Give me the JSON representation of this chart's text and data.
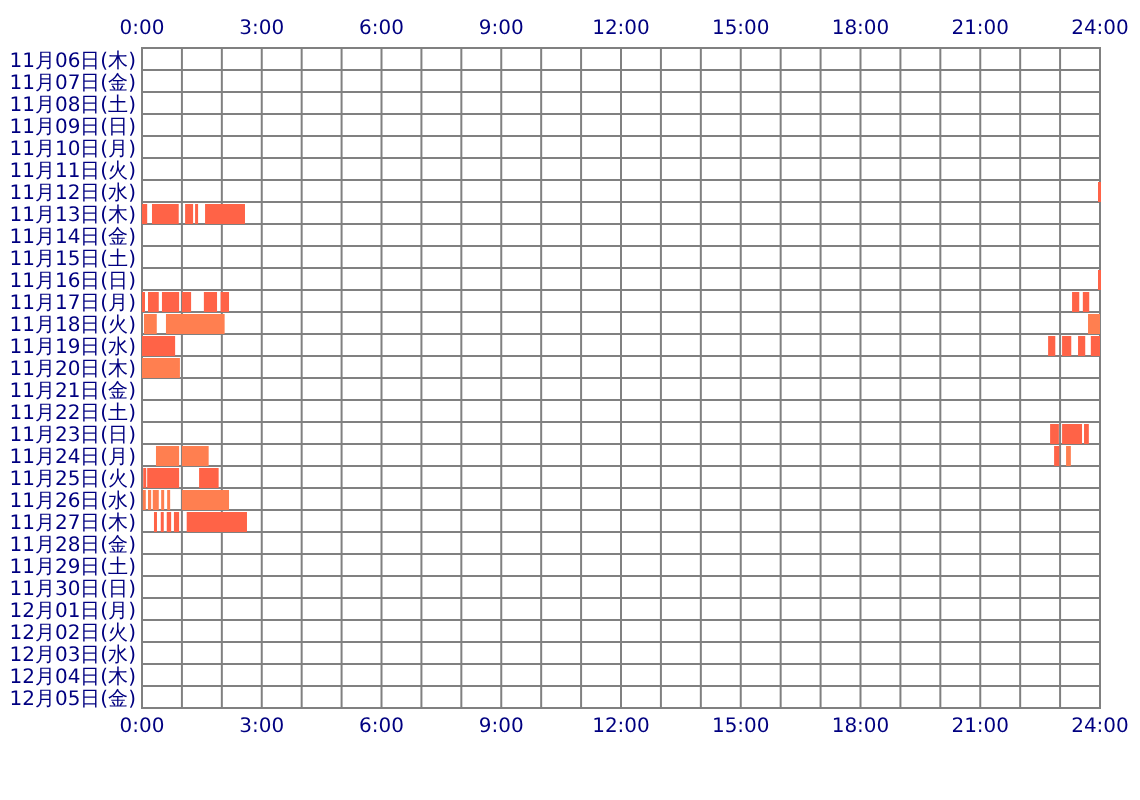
{
  "chart_data": {
    "type": "bar",
    "orientation": "horizontal",
    "grid": true,
    "categories": [
      "11月06日(木)",
      "11月07日(金)",
      "11月08日(土)",
      "11月09日(日)",
      "11月10日(月)",
      "11月11日(火)",
      "11月12日(水)",
      "11月13日(木)",
      "11月14日(金)",
      "11月15日(土)",
      "11月16日(日)",
      "11月17日(月)",
      "11月18日(火)",
      "11月19日(水)",
      "11月20日(木)",
      "11月21日(金)",
      "11月22日(土)",
      "11月23日(日)",
      "11月24日(月)",
      "11月25日(火)",
      "11月26日(水)",
      "11月27日(木)",
      "11月28日(金)",
      "11月29日(土)",
      "11月30日(日)",
      "12月01日(月)",
      "12月02日(火)",
      "12月03日(水)",
      "12月04日(木)",
      "12月05日(金)"
    ],
    "xlim": [
      0,
      24
    ],
    "xticks": [
      {
        "value": 0,
        "label": "0:00"
      },
      {
        "value": 1,
        "label": null
      },
      {
        "value": 2,
        "label": null
      },
      {
        "value": 3,
        "label": "3:00"
      },
      {
        "value": 4,
        "label": null
      },
      {
        "value": 5,
        "label": null
      },
      {
        "value": 6,
        "label": "6:00"
      },
      {
        "value": 7,
        "label": null
      },
      {
        "value": 8,
        "label": null
      },
      {
        "value": 9,
        "label": "9:00"
      },
      {
        "value": 10,
        "label": null
      },
      {
        "value": 11,
        "label": null
      },
      {
        "value": 12,
        "label": "12:00"
      },
      {
        "value": 13,
        "label": null
      },
      {
        "value": 14,
        "label": null
      },
      {
        "value": 15,
        "label": "15:00"
      },
      {
        "value": 16,
        "label": null
      },
      {
        "value": 17,
        "label": null
      },
      {
        "value": 18,
        "label": "18:00"
      },
      {
        "value": 19,
        "label": null
      },
      {
        "value": 20,
        "label": null
      },
      {
        "value": 21,
        "label": "21:00"
      },
      {
        "value": 22,
        "label": null
      },
      {
        "value": 23,
        "label": null
      },
      {
        "value": 24,
        "label": "24:00"
      }
    ],
    "x2lim": [
      0,
      24
    ],
    "x2ticks": [
      {
        "value": 0,
        "label": "0:00"
      },
      {
        "value": 3,
        "label": "3:00"
      },
      {
        "value": 6,
        "label": "6:00"
      },
      {
        "value": 9,
        "label": "9:00"
      },
      {
        "value": 12,
        "label": "12:00"
      },
      {
        "value": 15,
        "label": "15:00"
      },
      {
        "value": 18,
        "label": "18:00"
      },
      {
        "value": 21,
        "label": "21:00"
      },
      {
        "value": 24,
        "label": "24:00"
      }
    ],
    "series": [
      {
        "values": [
          null,
          null,
          null,
          null,
          null,
          null,
          0.05,
          0.13,
          null,
          null,
          0.05,
          0.07,
          0.32,
          0.83,
          0.95,
          null,
          null,
          0.22,
          0.58,
          0.05,
          0.06,
          0.07,
          null,
          null,
          null,
          null,
          null,
          null,
          null,
          null
        ],
        "base": [
          null,
          null,
          null,
          null,
          null,
          null,
          23.95,
          0,
          null,
          null,
          23.95,
          0,
          0.05,
          0,
          0,
          null,
          null,
          22.75,
          0.35,
          0.03,
          0.02,
          0.3,
          null,
          null,
          null,
          null,
          null,
          null,
          null,
          null
        ],
        "colors": [
          null,
          null,
          null,
          null,
          null,
          null,
          "#ff6347",
          "#ff6347",
          null,
          null,
          "#ff6347",
          "#ff6347",
          "#ff7f50",
          "#ff6347",
          "#ff7f50",
          null,
          null,
          "#ff6347",
          "#ff7f50",
          "#ff6347",
          "#ff7f50",
          "#ff6347",
          null,
          null,
          null,
          null,
          null,
          null,
          null,
          null
        ]
      },
      {
        "values": [
          null,
          null,
          null,
          null,
          null,
          null,
          null,
          0.67,
          null,
          null,
          null,
          0.27,
          1.47,
          0.18,
          null,
          null,
          null,
          0.5,
          0.67,
          0.05,
          0.08,
          0.06,
          null,
          null,
          null,
          null,
          null,
          null,
          null,
          null
        ],
        "base": [
          null,
          null,
          null,
          null,
          null,
          null,
          null,
          0.25,
          null,
          null,
          null,
          0.15,
          0.6,
          22.7,
          null,
          null,
          null,
          23.05,
          1.0,
          0.13,
          0.15,
          0.47,
          null,
          null,
          null,
          null,
          null,
          null,
          null,
          null
        ],
        "colors": [
          null,
          null,
          null,
          null,
          null,
          null,
          null,
          "#ff6347",
          null,
          null,
          null,
          "#ff6347",
          "#ff7f50",
          "#ff6347",
          null,
          null,
          null,
          "#ff6347",
          "#ff7f50",
          "#ff6347",
          "#ff7f50",
          "#ff6347",
          null,
          null,
          null,
          null,
          null,
          null,
          null,
          null
        ]
      },
      {
        "values": [
          null,
          null,
          null,
          null,
          null,
          null,
          null,
          0.2,
          null,
          null,
          null,
          0.43,
          0.3,
          0.23,
          null,
          null,
          null,
          0.12,
          0.13,
          0.73,
          0.15,
          0.11,
          null,
          null,
          null,
          null,
          null,
          null,
          null,
          null
        ],
        "base": [
          null,
          null,
          null,
          null,
          null,
          null,
          null,
          1.08,
          null,
          null,
          null,
          0.5,
          23.7,
          23.05,
          null,
          null,
          null,
          23.6,
          22.85,
          0.2,
          0.27,
          0.62,
          null,
          null,
          null,
          null,
          null,
          null,
          null,
          null
        ],
        "colors": [
          null,
          null,
          null,
          null,
          null,
          null,
          null,
          "#ff6347",
          null,
          null,
          null,
          "#ff6347",
          "#ff7f50",
          "#ff6347",
          null,
          null,
          null,
          "#ff6347",
          "#ff6347",
          "#ff6347",
          "#ff7f50",
          "#ff6347",
          null,
          null,
          null,
          null,
          null,
          null,
          null,
          null
        ]
      },
      {
        "values": [
          null,
          null,
          null,
          null,
          null,
          null,
          null,
          0.07,
          null,
          null,
          null,
          0.23,
          null,
          0.18,
          null,
          null,
          null,
          null,
          0.12,
          0.49,
          0.07,
          0.13,
          null,
          null,
          null,
          null,
          null,
          null,
          null,
          null
        ],
        "base": [
          null,
          null,
          null,
          null,
          null,
          null,
          null,
          1.33,
          null,
          null,
          null,
          1.0,
          null,
          23.45,
          null,
          null,
          null,
          null,
          23.15,
          1.43,
          0.48,
          0.8,
          null,
          null,
          null,
          null,
          null,
          null,
          null,
          null
        ],
        "colors": [
          null,
          null,
          null,
          null,
          null,
          null,
          null,
          "#ff6347",
          null,
          null,
          null,
          "#ff6347",
          null,
          "#ff6347",
          null,
          null,
          null,
          null,
          "#ff7f50",
          "#ff6347",
          "#ff7f50",
          "#ff6347",
          null,
          null,
          null,
          null,
          null,
          null,
          null,
          null
        ]
      },
      {
        "values": [
          null,
          null,
          null,
          null,
          null,
          null,
          null,
          1.0,
          null,
          null,
          null,
          0.33,
          null,
          0.23,
          null,
          null,
          null,
          null,
          null,
          null,
          0.05,
          1.51,
          null,
          null,
          null,
          null,
          null,
          null,
          null,
          null
        ],
        "base": [
          null,
          null,
          null,
          null,
          null,
          null,
          null,
          1.58,
          null,
          null,
          null,
          1.55,
          null,
          23.77,
          null,
          null,
          null,
          null,
          null,
          null,
          0.63,
          1.12,
          null,
          null,
          null,
          null,
          null,
          null,
          null,
          null
        ],
        "colors": [
          null,
          null,
          null,
          null,
          null,
          null,
          null,
          "#ff6347",
          null,
          null,
          null,
          "#ff6347",
          null,
          "#ff6347",
          null,
          null,
          null,
          null,
          null,
          null,
          "#ff7f50",
          "#ff6347",
          null,
          null,
          null,
          null,
          null,
          null,
          null,
          null
        ]
      },
      {
        "values": [
          null,
          null,
          null,
          null,
          null,
          null,
          null,
          null,
          null,
          null,
          null,
          0.21,
          null,
          null,
          null,
          null,
          null,
          null,
          null,
          null,
          1.18,
          null,
          null,
          null,
          null,
          null,
          null,
          null,
          null,
          null
        ],
        "base": [
          null,
          null,
          null,
          null,
          null,
          null,
          null,
          null,
          null,
          null,
          null,
          1.97,
          null,
          null,
          null,
          null,
          null,
          null,
          null,
          null,
          1.0,
          null,
          null,
          null,
          null,
          null,
          null,
          null,
          null,
          null
        ],
        "colors": [
          null,
          null,
          null,
          null,
          null,
          null,
          null,
          null,
          null,
          null,
          null,
          "#ff6347",
          null,
          null,
          null,
          null,
          null,
          null,
          null,
          null,
          "#ff7f50",
          null,
          null,
          null,
          null,
          null,
          null,
          null,
          null,
          null
        ]
      },
      {
        "values": [
          null,
          null,
          null,
          null,
          null,
          null,
          null,
          null,
          null,
          null,
          null,
          0.18,
          null,
          null,
          null,
          null,
          null,
          null,
          null,
          null,
          null,
          null,
          null,
          null,
          null,
          null,
          null,
          null,
          null,
          null
        ],
        "base": [
          null,
          null,
          null,
          null,
          null,
          null,
          null,
          null,
          null,
          null,
          null,
          23.3,
          null,
          null,
          null,
          null,
          null,
          null,
          null,
          null,
          null,
          null,
          null,
          null,
          null,
          null,
          null,
          null,
          null,
          null
        ],
        "colors": [
          null,
          null,
          null,
          null,
          null,
          null,
          null,
          null,
          null,
          null,
          null,
          "#ff6347",
          null,
          null,
          null,
          null,
          null,
          null,
          null,
          null,
          null,
          null,
          null,
          null,
          null,
          null,
          null,
          null,
          null,
          null
        ]
      },
      {
        "values": [
          null,
          null,
          null,
          null,
          null,
          null,
          null,
          null,
          null,
          null,
          null,
          0.16,
          null,
          null,
          null,
          null,
          null,
          null,
          null,
          null,
          null,
          null,
          null,
          null,
          null,
          null,
          null,
          null,
          null,
          null
        ],
        "base": [
          null,
          null,
          null,
          null,
          null,
          null,
          null,
          null,
          null,
          null,
          null,
          23.57,
          null,
          null,
          null,
          null,
          null,
          null,
          null,
          null,
          null,
          null,
          null,
          null,
          null,
          null,
          null,
          null,
          null,
          null
        ],
        "colors": [
          null,
          null,
          null,
          null,
          null,
          null,
          null,
          null,
          null,
          null,
          null,
          "#ff6347",
          null,
          null,
          null,
          null,
          null,
          null,
          null,
          null,
          null,
          null,
          null,
          null,
          null,
          null,
          null,
          null,
          null,
          null
        ]
      }
    ]
  }
}
